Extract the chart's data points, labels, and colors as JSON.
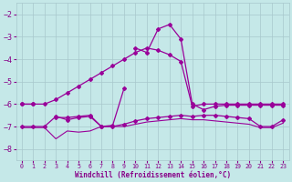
{
  "x": [
    0,
    1,
    2,
    3,
    4,
    5,
    6,
    7,
    8,
    9,
    10,
    11,
    12,
    13,
    14,
    15,
    16,
    17,
    18,
    19,
    20,
    21,
    22,
    23
  ],
  "line_dramatic": [
    -6.0,
    -6.0,
    null,
    null,
    null,
    null,
    null,
    null,
    null,
    null,
    -3.5,
    -3.7,
    -2.65,
    -2.45,
    -3.1,
    -6.0,
    -6.25,
    -6.1,
    -6.05,
    -6.05,
    -6.05,
    -6.05,
    -6.05,
    -6.05
  ],
  "line_rising": [
    -6.0,
    -6.0,
    -6.0,
    -5.8,
    -5.5,
    -5.2,
    -4.9,
    -4.6,
    -4.3,
    -4.0,
    -3.7,
    -3.5,
    -3.6,
    -3.8,
    -4.1,
    -6.1,
    -6.0,
    -6.0,
    -6.0,
    -6.0,
    -6.0,
    -6.0,
    -6.0,
    -6.0
  ],
  "line_spike": [
    null,
    null,
    null,
    -6.6,
    -6.6,
    -6.55,
    -6.5,
    -7.0,
    -6.95,
    -5.3,
    null,
    null,
    null,
    null,
    null,
    null,
    null,
    null,
    null,
    null,
    null,
    null,
    null,
    null
  ],
  "line_flat_mid": [
    -7.0,
    -7.0,
    -7.0,
    -6.55,
    -6.7,
    -6.6,
    -6.55,
    -7.0,
    -7.0,
    -6.9,
    -6.75,
    -6.65,
    -6.6,
    -6.55,
    -6.5,
    -6.55,
    -6.5,
    -6.5,
    -6.55,
    -6.6,
    -6.65,
    -7.0,
    -7.0,
    -6.7
  ],
  "line_flat_low": [
    -7.05,
    -7.05,
    -7.05,
    -7.55,
    -7.2,
    -7.25,
    -7.2,
    -7.0,
    -7.0,
    -7.0,
    -6.9,
    -6.8,
    -6.75,
    -6.7,
    -6.65,
    -6.7,
    -6.7,
    -6.75,
    -6.8,
    -6.85,
    -6.9,
    -7.05,
    -7.05,
    -6.85
  ],
  "bg_color": "#c5e8e8",
  "grid_color": "#a8c8cc",
  "line_color": "#990099",
  "xlabel": "Windchill (Refroidissement éolien,°C)",
  "ylim": [
    -8.5,
    -1.5
  ],
  "xlim": [
    -0.5,
    23.5
  ],
  "yticks": [
    -8,
    -7,
    -6,
    -5,
    -4,
    -3,
    -2
  ],
  "xticks": [
    0,
    1,
    2,
    3,
    4,
    5,
    6,
    7,
    8,
    9,
    10,
    11,
    12,
    13,
    14,
    15,
    16,
    17,
    18,
    19,
    20,
    21,
    22,
    23
  ]
}
